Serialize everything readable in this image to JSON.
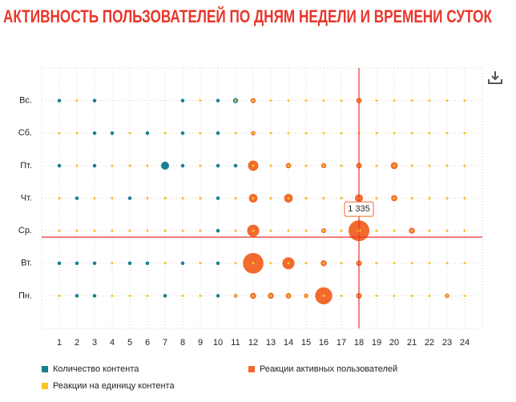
{
  "chart_data": {
    "type": "bubble-matrix",
    "title": "АКТИВНОСТЬ ПОЛЬЗОВАТЕЛЕЙ ПО ДНЯМ НЕДЕЛИ И ВРЕМЕНИ СУТОК",
    "categories": [
      "Вс.",
      "Сб.",
      "Пт.",
      "Чт.",
      "Ср.",
      "Вт.",
      "Пн."
    ],
    "xlim": [
      0,
      25
    ],
    "xticks": [
      1,
      2,
      3,
      4,
      5,
      6,
      7,
      8,
      9,
      10,
      11,
      12,
      13,
      14,
      15,
      16,
      17,
      18,
      19,
      20,
      21,
      22,
      23,
      24
    ],
    "grid": true,
    "series": [
      {
        "name": "Количество контента",
        "color": "#17808f",
        "values": [
          [
            1,
            null,
            1,
            null,
            null,
            null,
            null,
            1,
            null,
            1,
            2,
            null,
            null,
            null,
            null,
            null,
            null,
            null,
            null,
            null,
            null,
            null,
            null,
            null
          ],
          [
            null,
            null,
            1,
            1,
            null,
            1,
            null,
            1,
            null,
            1,
            null,
            null,
            null,
            null,
            null,
            null,
            null,
            null,
            null,
            null,
            null,
            null,
            null,
            null
          ],
          [
            1,
            null,
            1,
            null,
            null,
            null,
            5,
            1,
            null,
            1,
            1,
            null,
            null,
            null,
            null,
            null,
            null,
            null,
            null,
            null,
            null,
            null,
            null,
            null
          ],
          [
            null,
            1,
            null,
            null,
            1,
            null,
            null,
            null,
            null,
            1,
            null,
            null,
            null,
            null,
            null,
            null,
            null,
            null,
            null,
            null,
            null,
            null,
            null,
            null
          ],
          [
            null,
            null,
            null,
            null,
            null,
            null,
            null,
            null,
            null,
            1,
            null,
            null,
            null,
            null,
            null,
            null,
            null,
            null,
            null,
            null,
            null,
            null,
            null,
            null
          ],
          [
            1,
            1,
            1,
            null,
            1,
            1,
            null,
            1,
            null,
            1,
            null,
            null,
            null,
            null,
            null,
            null,
            null,
            null,
            null,
            null,
            null,
            null,
            null,
            null
          ],
          [
            null,
            1,
            1,
            null,
            null,
            null,
            1,
            null,
            null,
            1,
            1,
            null,
            null,
            null,
            null,
            null,
            null,
            null,
            null,
            null,
            null,
            null,
            null,
            null
          ]
        ]
      },
      {
        "name": "Реакции активных пользователей",
        "color": "#f26a2e",
        "values": [
          [
            null,
            null,
            null,
            null,
            null,
            null,
            null,
            null,
            null,
            null,
            null,
            80,
            null,
            null,
            null,
            null,
            null,
            90,
            null,
            null,
            null,
            null,
            null,
            null
          ],
          [
            null,
            null,
            null,
            null,
            null,
            null,
            null,
            null,
            null,
            null,
            null,
            60,
            null,
            null,
            null,
            null,
            null,
            null,
            null,
            null,
            null,
            null,
            null,
            null
          ],
          [
            null,
            null,
            null,
            null,
            null,
            null,
            null,
            null,
            null,
            null,
            null,
            330,
            null,
            90,
            null,
            80,
            null,
            100,
            null,
            150,
            null,
            null,
            null,
            null
          ],
          [
            null,
            null,
            null,
            null,
            null,
            null,
            null,
            null,
            null,
            null,
            null,
            230,
            null,
            230,
            null,
            null,
            null,
            200,
            null,
            120,
            null,
            null,
            null,
            null
          ],
          [
            null,
            null,
            null,
            null,
            null,
            null,
            null,
            null,
            null,
            null,
            null,
            450,
            null,
            null,
            null,
            70,
            null,
            1335,
            null,
            null,
            110,
            null,
            null,
            null
          ],
          [
            null,
            null,
            null,
            null,
            null,
            null,
            null,
            null,
            null,
            null,
            null,
            1300,
            null,
            450,
            null,
            110,
            null,
            100,
            null,
            null,
            null,
            null,
            null,
            null
          ],
          [
            null,
            null,
            null,
            null,
            null,
            null,
            null,
            null,
            null,
            null,
            40,
            110,
            110,
            90,
            60,
            900,
            null,
            100,
            null,
            null,
            null,
            null,
            60,
            null
          ]
        ]
      },
      {
        "name": "Реакции на единицу контента",
        "color": "#f7c325",
        "values": [
          [
            null,
            1,
            null,
            null,
            null,
            null,
            null,
            null,
            1,
            null,
            1,
            1,
            1,
            1,
            1,
            1,
            1,
            1,
            1,
            1,
            1,
            1,
            1,
            1
          ],
          [
            1,
            1,
            null,
            null,
            1,
            null,
            1,
            null,
            1,
            null,
            1,
            1,
            1,
            1,
            1,
            1,
            1,
            1,
            1,
            1,
            1,
            1,
            1,
            1
          ],
          [
            null,
            1,
            null,
            1,
            1,
            1,
            null,
            null,
            1,
            null,
            null,
            1,
            1,
            1,
            1,
            1,
            1,
            1,
            1,
            1,
            1,
            1,
            1,
            1
          ],
          [
            1,
            null,
            1,
            1,
            null,
            1,
            1,
            1,
            1,
            null,
            1,
            1,
            1,
            1,
            1,
            1,
            1,
            1,
            1,
            1,
            1,
            1,
            1,
            1
          ],
          [
            1,
            1,
            1,
            1,
            1,
            1,
            1,
            1,
            1,
            null,
            1,
            1,
            1,
            1,
            1,
            1,
            1,
            2,
            1,
            1,
            1,
            1,
            1,
            1
          ],
          [
            null,
            null,
            null,
            1,
            null,
            null,
            1,
            null,
            1,
            null,
            1,
            1,
            1,
            1,
            1,
            1,
            1,
            1,
            1,
            1,
            1,
            1,
            1,
            1
          ],
          [
            1,
            null,
            null,
            1,
            1,
            1,
            null,
            1,
            1,
            null,
            1,
            1,
            1,
            1,
            1,
            1,
            1,
            1,
            1,
            1,
            1,
            1,
            1,
            1
          ]
        ]
      }
    ],
    "tooltip": {
      "series": 1,
      "value": 1335,
      "label": "1 335",
      "color": "#e8362a"
    }
  }
}
